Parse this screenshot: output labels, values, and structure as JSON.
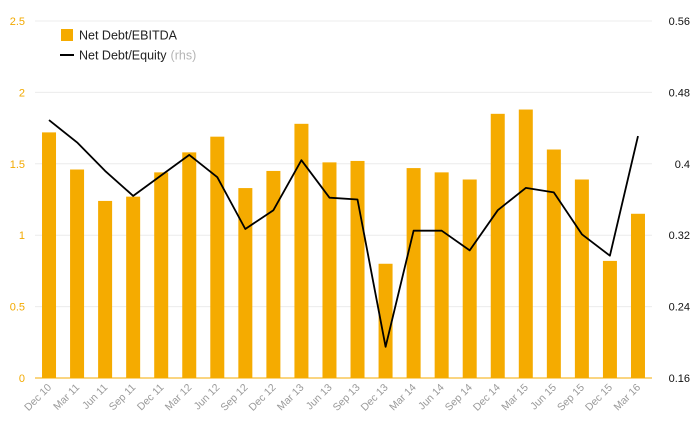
{
  "chart_data": {
    "type": "bar",
    "categories": [
      "Dec 10",
      "Mar 11",
      "Jun 11",
      "Sep 11",
      "Dec 11",
      "Mar 12",
      "Jun 12",
      "Sep 12",
      "Dec 12",
      "Mar 13",
      "Jun 13",
      "Sep 13",
      "Dec 13",
      "Mar 14",
      "Jun 14",
      "Sep 14",
      "Dec 14",
      "Mar 15",
      "Jun 15",
      "Sep 15",
      "Dec 15",
      "Mar 16"
    ],
    "series": [
      {
        "name": "Net Debt/EBITDA",
        "type": "bar",
        "axis": "left",
        "color": "#f5ab00",
        "values": [
          1.72,
          1.46,
          1.24,
          1.27,
          1.44,
          1.58,
          1.69,
          1.33,
          1.45,
          1.78,
          1.51,
          1.52,
          0.8,
          1.47,
          1.44,
          1.39,
          1.85,
          1.88,
          1.6,
          1.39,
          0.82,
          1.15
        ]
      },
      {
        "name": "Net Debt/Equity",
        "suffix": "(rhs)",
        "type": "line",
        "axis": "right",
        "color": "#000000",
        "values": [
          0.449,
          0.424,
          0.392,
          0.364,
          0.387,
          0.41,
          0.385,
          0.327,
          0.348,
          0.404,
          0.362,
          0.36,
          0.195,
          0.325,
          0.325,
          0.303,
          0.348,
          0.373,
          0.368,
          0.321,
          0.297,
          0.431
        ]
      }
    ],
    "ylim": [
      0,
      2.5
    ],
    "yticks": [
      "0",
      "0.5",
      "1",
      "1.5",
      "2",
      "2.5"
    ],
    "y2lim": [
      0.16,
      0.56
    ],
    "y2ticks": [
      "0.16",
      "0.24",
      "0.32",
      "0.4",
      "0.48",
      "0.56"
    ],
    "grid": "horizontal",
    "legend_position": "top-left",
    "title": "",
    "xlabel": "",
    "ylabel": ""
  }
}
